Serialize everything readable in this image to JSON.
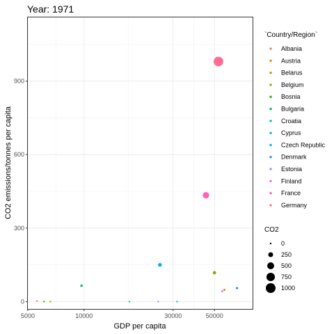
{
  "chart_data": {
    "type": "scatter",
    "title": "Year: 1971",
    "xlabel": "GDP per capita",
    "ylabel": "CO2 emissions/tonnes per capita",
    "x_scale": "log10",
    "xlim": [
      5000,
      80000
    ],
    "ylim": [
      -30,
      1160
    ],
    "x_ticks": [
      5000,
      10000,
      30000,
      50000
    ],
    "x_tick_labels": [
      "5000",
      "10000",
      "30000",
      "50000"
    ],
    "y_ticks": [
      0,
      300,
      600,
      900
    ],
    "y_tick_labels": [
      "0",
      "300",
      "600",
      "900"
    ],
    "grid": true,
    "legend_position": "right",
    "color_legend": {
      "title": "`Country/Region`",
      "entries": [
        {
          "name": "Albania",
          "color": "#F8766D"
        },
        {
          "name": "Austria",
          "color": "#E18A00"
        },
        {
          "name": "Belarus",
          "color": "#BE9C00"
        },
        {
          "name": "Belgium",
          "color": "#8CAB00"
        },
        {
          "name": "Bosnia",
          "color": "#24B700"
        },
        {
          "name": "Bulgaria",
          "color": "#00BE70"
        },
        {
          "name": "Croatia",
          "color": "#00C1AB"
        },
        {
          "name": "Cyprus",
          "color": "#00BBDA"
        },
        {
          "name": "Czech Republic",
          "color": "#00ACFC"
        },
        {
          "name": "Denmark",
          "color": "#2F91FF"
        },
        {
          "name": "Estonia",
          "color": "#9F8CFF"
        },
        {
          "name": "Finland",
          "color": "#DC71FA"
        },
        {
          "name": "France",
          "color": "#FF62BC"
        },
        {
          "name": "Germany",
          "color": "#FF6C91"
        }
      ]
    },
    "size_legend": {
      "title": "CO2",
      "entries": [
        {
          "label": "0",
          "value": 0
        },
        {
          "label": "250",
          "value": 250
        },
        {
          "label": "500",
          "value": 500
        },
        {
          "label": "750",
          "value": 750
        },
        {
          "label": "1000",
          "value": 1000
        }
      ]
    },
    "points": [
      {
        "country": "Albania",
        "x": 5600,
        "y": 2,
        "co2": 2
      },
      {
        "country": "Austria",
        "x": 56500,
        "y": 48,
        "co2": 48
      },
      {
        "country": "Belarus",
        "x": 6600,
        "y": 0,
        "co2": 0
      },
      {
        "country": "Belgium",
        "x": 50000,
        "y": 118,
        "co2": 118
      },
      {
        "country": "Bosnia",
        "x": 6100,
        "y": 0,
        "co2": 0
      },
      {
        "country": "Bulgaria",
        "x": 9700,
        "y": 65,
        "co2": 65
      },
      {
        "country": "Croatia",
        "x": 17500,
        "y": 0,
        "co2": 0
      },
      {
        "country": "Cyprus",
        "x": 31500,
        "y": 0,
        "co2": 0
      },
      {
        "country": "Czech Republic",
        "x": 25500,
        "y": 150,
        "co2": 150
      },
      {
        "country": "Denmark",
        "x": 66000,
        "y": 55,
        "co2": 55
      },
      {
        "country": "Estonia",
        "x": 25000,
        "y": 0,
        "co2": 0
      },
      {
        "country": "Finland",
        "x": 55000,
        "y": 42,
        "co2": 42
      },
      {
        "country": "France",
        "x": 45000,
        "y": 434,
        "co2": 434
      },
      {
        "country": "Germany",
        "x": 52500,
        "y": 980,
        "co2": 980
      }
    ]
  }
}
